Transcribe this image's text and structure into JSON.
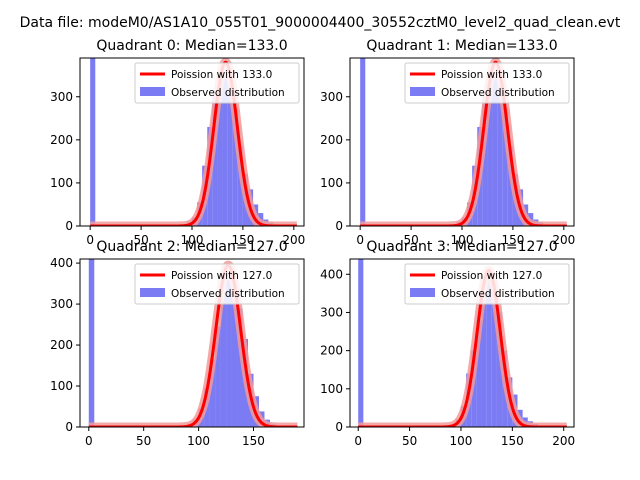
{
  "figure": {
    "suptitle": "Data file: modeM0/AS1A10_055T01_9000004400_30552cztM0_level2_quad_clean.evt"
  },
  "colors": {
    "hist": "#7b7bf4",
    "fit": "#ff0000",
    "fit_band": "#f29a9a"
  },
  "chart_data": [
    {
      "type": "histogram",
      "title": "Quadrant 0: Median=133.0",
      "median": 133.0,
      "xlim": [
        -10,
        210
      ],
      "ylim": [
        0,
        390
      ],
      "xticks": [
        0,
        50,
        100,
        150,
        200
      ],
      "yticks": [
        0,
        100,
        200,
        300
      ],
      "legend": [
        "Poission with 133.0",
        "Observed distribution"
      ],
      "legend_loc": "upper right",
      "spike": {
        "x": 0,
        "value": 390
      },
      "bins": [
        {
          "x": 85,
          "value": 2
        },
        {
          "x": 90,
          "value": 4
        },
        {
          "x": 95,
          "value": 10
        },
        {
          "x": 100,
          "value": 20
        },
        {
          "x": 105,
          "value": 55
        },
        {
          "x": 110,
          "value": 140
        },
        {
          "x": 115,
          "value": 230
        },
        {
          "x": 120,
          "value": 300
        },
        {
          "x": 125,
          "value": 345
        },
        {
          "x": 130,
          "value": 350
        },
        {
          "x": 135,
          "value": 325
        },
        {
          "x": 140,
          "value": 275
        },
        {
          "x": 145,
          "value": 185
        },
        {
          "x": 150,
          "value": 120
        },
        {
          "x": 155,
          "value": 85
        },
        {
          "x": 160,
          "value": 50
        },
        {
          "x": 165,
          "value": 30
        },
        {
          "x": 170,
          "value": 15
        },
        {
          "x": 175,
          "value": 8
        },
        {
          "x": 180,
          "value": 4
        },
        {
          "x": 185,
          "value": 2
        },
        {
          "x": 190,
          "value": 1
        }
      ],
      "fit": {
        "x_start": 0,
        "x_end": 203,
        "mu": 133.0,
        "peak": 380
      }
    },
    {
      "type": "histogram",
      "title": "Quadrant 1: Median=133.0",
      "median": 133.0,
      "xlim": [
        -10,
        210
      ],
      "ylim": [
        0,
        390
      ],
      "xticks": [
        0,
        50,
        100,
        150,
        200
      ],
      "yticks": [
        0,
        100,
        200,
        300
      ],
      "legend": [
        "Poission with 133.0",
        "Observed distribution"
      ],
      "legend_loc": "upper right",
      "spike": {
        "x": 0,
        "value": 390
      },
      "bins": [
        {
          "x": 85,
          "value": 2
        },
        {
          "x": 90,
          "value": 4
        },
        {
          "x": 95,
          "value": 10
        },
        {
          "x": 100,
          "value": 20
        },
        {
          "x": 105,
          "value": 55
        },
        {
          "x": 110,
          "value": 140
        },
        {
          "x": 115,
          "value": 230
        },
        {
          "x": 120,
          "value": 300
        },
        {
          "x": 125,
          "value": 345
        },
        {
          "x": 130,
          "value": 350
        },
        {
          "x": 135,
          "value": 325
        },
        {
          "x": 140,
          "value": 275
        },
        {
          "x": 145,
          "value": 185
        },
        {
          "x": 150,
          "value": 120
        },
        {
          "x": 155,
          "value": 85
        },
        {
          "x": 160,
          "value": 50
        },
        {
          "x": 165,
          "value": 30
        },
        {
          "x": 170,
          "value": 15
        },
        {
          "x": 175,
          "value": 8
        },
        {
          "x": 180,
          "value": 4
        },
        {
          "x": 185,
          "value": 2
        },
        {
          "x": 190,
          "value": 1
        }
      ],
      "fit": {
        "x_start": 0,
        "x_end": 203,
        "mu": 133.0,
        "peak": 380
      }
    },
    {
      "type": "histogram",
      "title": "Quadrant 2: Median=127.0",
      "median": 127.0,
      "xlim": [
        -8,
        196
      ],
      "ylim": [
        0,
        410
      ],
      "xticks": [
        0,
        50,
        100,
        150
      ],
      "yticks": [
        0,
        100,
        200,
        300,
        400
      ],
      "legend": [
        "Poission with 127.0",
        "Observed distribution"
      ],
      "legend_loc": "upper right",
      "spike": {
        "x": 0,
        "value": 410
      },
      "bins": [
        {
          "x": 85,
          "value": 3
        },
        {
          "x": 90,
          "value": 8
        },
        {
          "x": 95,
          "value": 18
        },
        {
          "x": 100,
          "value": 45
        },
        {
          "x": 105,
          "value": 95
        },
        {
          "x": 110,
          "value": 165
        },
        {
          "x": 115,
          "value": 245
        },
        {
          "x": 120,
          "value": 320
        },
        {
          "x": 125,
          "value": 360
        },
        {
          "x": 130,
          "value": 345
        },
        {
          "x": 135,
          "value": 290
        },
        {
          "x": 140,
          "value": 215
        },
        {
          "x": 145,
          "value": 130
        },
        {
          "x": 150,
          "value": 75
        },
        {
          "x": 155,
          "value": 38
        },
        {
          "x": 160,
          "value": 18
        },
        {
          "x": 165,
          "value": 8
        },
        {
          "x": 170,
          "value": 3
        },
        {
          "x": 175,
          "value": 1
        }
      ],
      "fit": {
        "x_start": 0,
        "x_end": 190,
        "mu": 127.0,
        "peak": 395
      }
    },
    {
      "type": "histogram",
      "title": "Quadrant 3: Median=127.0",
      "median": 127.0,
      "xlim": [
        -8,
        210
      ],
      "ylim": [
        0,
        440
      ],
      "xticks": [
        0,
        50,
        100,
        150,
        200
      ],
      "yticks": [
        0,
        100,
        200,
        300,
        400
      ],
      "legend": [
        "Poission with 127.0",
        "Observed distribution"
      ],
      "legend_loc": "upper right",
      "spike": {
        "x": 0,
        "value": 440
      },
      "bins": [
        {
          "x": 85,
          "value": 3
        },
        {
          "x": 90,
          "value": 8
        },
        {
          "x": 95,
          "value": 20
        },
        {
          "x": 100,
          "value": 55
        },
        {
          "x": 105,
          "value": 140
        },
        {
          "x": 110,
          "value": 200
        },
        {
          "x": 115,
          "value": 280
        },
        {
          "x": 120,
          "value": 350
        },
        {
          "x": 125,
          "value": 395
        },
        {
          "x": 130,
          "value": 380
        },
        {
          "x": 135,
          "value": 300
        },
        {
          "x": 140,
          "value": 200
        },
        {
          "x": 145,
          "value": 130
        },
        {
          "x": 150,
          "value": 85
        },
        {
          "x": 155,
          "value": 45
        },
        {
          "x": 160,
          "value": 25
        },
        {
          "x": 165,
          "value": 15
        },
        {
          "x": 170,
          "value": 8
        },
        {
          "x": 175,
          "value": 4
        },
        {
          "x": 180,
          "value": 2
        },
        {
          "x": 185,
          "value": 1
        }
      ],
      "fit": {
        "x_start": 0,
        "x_end": 203,
        "mu": 127.0,
        "peak": 410
      }
    }
  ]
}
